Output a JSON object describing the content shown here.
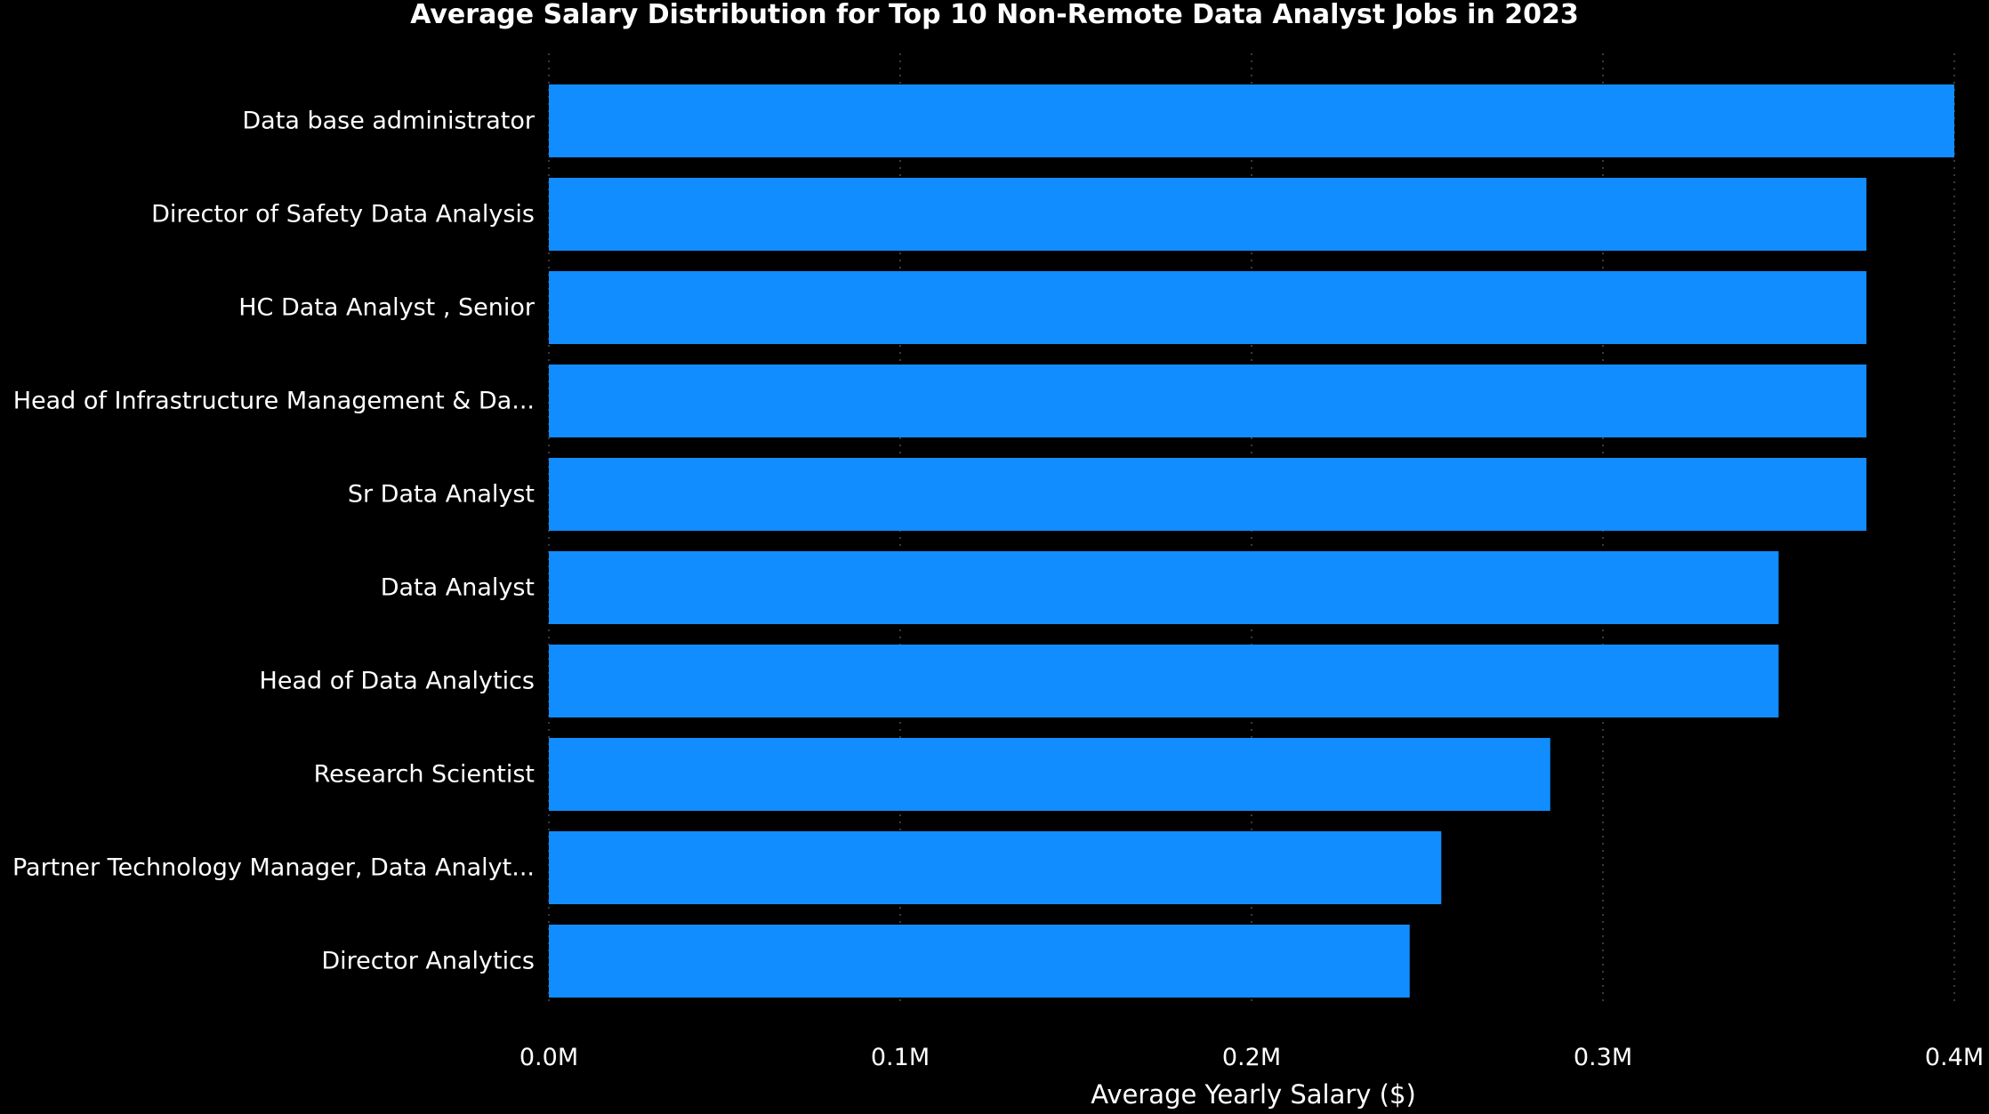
{
  "chart_data": {
    "type": "bar",
    "orientation": "horizontal",
    "title": "Average Salary Distribution for Top 10 Non-Remote Data Analyst Jobs in 2023",
    "xlabel": "Average Yearly Salary ($)",
    "ylabel": "",
    "categories": [
      "Data base administrator",
      "Director of Safety Data Analysis",
      "HC Data Analyst , Senior",
      "Head of Infrastructure Management & Da...",
      "Sr Data Analyst",
      "Data Analyst",
      "Head of Data Analytics",
      "Research Scientist",
      "Partner Technology Manager, Data Analyt...",
      "Director Analytics"
    ],
    "values": [
      400000,
      375000,
      375000,
      375000,
      375000,
      350000,
      350000,
      285000,
      254000,
      245000
    ],
    "xlim": [
      0,
      400000
    ],
    "ticks": [
      0,
      100000,
      200000,
      300000,
      400000
    ],
    "tick_labels": [
      "0.0M",
      "0.1M",
      "0.2M",
      "0.3M",
      "0.4M"
    ],
    "grid": true,
    "legend": "none",
    "bar_color": "#118dff",
    "background_color": "#000000",
    "text_color": "#ffffff"
  }
}
